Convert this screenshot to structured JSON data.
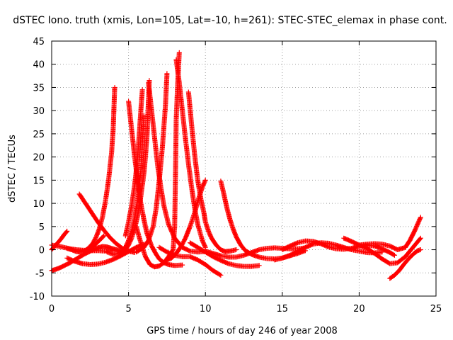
{
  "chart_data": {
    "type": "scatter",
    "title": "dSTEC Iono. truth (xmis, Lon=105, Lat=-10, h=261): STEC-STEC_elemax in phase cont.",
    "xlabel": "GPS time / hours of day 246 of year 2008",
    "ylabel": "dSTEC  / TECUs",
    "xlim": [
      0,
      25
    ],
    "ylim": [
      -10,
      45
    ],
    "x_ticks": [
      0,
      5,
      10,
      15,
      20,
      25
    ],
    "y_ticks": [
      -10,
      -5,
      0,
      5,
      10,
      15,
      20,
      25,
      30,
      35,
      40,
      45
    ],
    "grid": true,
    "marker": "+",
    "color": "#ff0000",
    "series": [
      {
        "x": [
          0.0,
          0.3,
          0.6,
          0.9,
          1.2,
          1.5,
          1.8,
          2.1,
          2.4,
          2.7,
          3.0,
          3.3,
          3.6,
          3.9,
          4.2,
          4.5
        ],
        "y": [
          -4.5,
          -4.2,
          -3.8,
          -3.3,
          -2.8,
          -2.2,
          -1.6,
          -1.0,
          -0.5,
          0.0,
          0.4,
          0.7,
          0.6,
          0.3,
          0.0,
          -0.3
        ]
      },
      {
        "x": [
          0.0,
          0.2,
          0.4,
          0.6,
          0.8,
          1.0
        ],
        "y": [
          0.0,
          0.8,
          1.5,
          2.3,
          3.2,
          4.0
        ]
      },
      {
        "x": [
          0.0,
          0.4,
          0.8,
          1.2,
          1.6,
          2.0,
          2.5,
          3.0,
          3.5,
          4.0
        ],
        "y": [
          1.0,
          0.8,
          0.5,
          0.2,
          0.0,
          -0.1,
          -0.2,
          -0.2,
          -0.3,
          -0.2
        ]
      },
      {
        "x": [
          1.0,
          1.3,
          1.6,
          1.9,
          2.1,
          2.3,
          2.5,
          2.7,
          2.9,
          3.1,
          3.3,
          3.5,
          3.7,
          3.9,
          4.0,
          4.05,
          4.1
        ],
        "y": [
          0.3,
          0.0,
          -0.4,
          -0.5,
          -0.3,
          0.1,
          0.7,
          1.5,
          2.8,
          4.5,
          7.0,
          10.5,
          15.0,
          21.0,
          26.0,
          30.5,
          35.0
        ]
      },
      {
        "x": [
          1.8,
          2.2,
          2.6,
          3.0,
          3.4,
          3.8,
          4.2,
          4.6,
          5.0,
          5.4
        ],
        "y": [
          12.0,
          10.0,
          8.0,
          6.0,
          4.2,
          2.6,
          1.3,
          0.3,
          -0.3,
          -0.6
        ]
      },
      {
        "x": [
          1.0,
          1.5,
          2.0,
          2.5,
          3.0,
          3.5,
          4.0,
          4.5,
          5.0,
          5.5,
          6.0
        ],
        "y": [
          -1.8,
          -2.5,
          -3.0,
          -3.2,
          -3.1,
          -2.7,
          -2.1,
          -1.3,
          -0.4,
          0.5,
          1.2
        ]
      },
      {
        "x": [
          2.5,
          2.8,
          3.1,
          3.4
        ],
        "y": [
          0.0,
          1.0,
          2.0,
          3.0
        ]
      },
      {
        "x": [
          3.6,
          4.0,
          4.4,
          4.8,
          5.0,
          5.2,
          5.4,
          5.6,
          5.8,
          6.0,
          6.1,
          6.2,
          6.25,
          6.3,
          6.35
        ],
        "y": [
          -0.5,
          -1.0,
          -0.8,
          0.0,
          1.0,
          2.5,
          4.5,
          7.5,
          11.5,
          16.5,
          20.0,
          24.5,
          28.5,
          32.5,
          36.5
        ]
      },
      {
        "x": [
          5.0,
          5.2,
          5.4,
          5.6,
          5.8,
          6.0,
          6.2,
          6.5,
          6.8,
          7.0,
          7.3,
          7.6,
          8.0,
          8.5
        ],
        "y": [
          32.0,
          26.0,
          20.0,
          14.5,
          10.0,
          6.5,
          3.5,
          0.8,
          -1.0,
          -2.0,
          -2.8,
          -3.2,
          -3.4,
          -3.3
        ]
      },
      {
        "x": [
          4.5,
          4.8,
          5.0,
          5.2,
          5.4,
          5.6,
          5.8,
          5.9,
          6.0
        ],
        "y": [
          -0.8,
          0.5,
          2.0,
          4.0,
          7.0,
          11.0,
          17.0,
          23.0,
          29.0
        ]
      },
      {
        "x": [
          4.8,
          5.0,
          5.2,
          5.4,
          5.5,
          5.6,
          5.7,
          5.8,
          5.9
        ],
        "y": [
          3.0,
          6.0,
          9.5,
          14.0,
          17.0,
          20.5,
          25.0,
          30.0,
          34.5
        ]
      },
      {
        "x": [
          6.3,
          6.5,
          6.7,
          6.9,
          7.1,
          7.3,
          7.6,
          8.0,
          8.5,
          9.0,
          9.5,
          10.0
        ],
        "y": [
          36.0,
          30.0,
          24.0,
          18.0,
          13.5,
          9.5,
          5.5,
          2.5,
          0.5,
          -0.3,
          -0.5,
          -0.4
        ]
      },
      {
        "x": [
          5.5,
          6.0,
          6.3,
          6.6,
          6.8,
          7.0,
          7.2,
          7.4,
          7.5
        ],
        "y": [
          -0.5,
          0.5,
          2.0,
          5.0,
          9.0,
          15.0,
          22.0,
          31.0,
          38.0
        ]
      },
      {
        "x": [
          5.5,
          5.8,
          6.1,
          6.4,
          6.7,
          7.0,
          7.3,
          7.6,
          7.9,
          8.0,
          8.05,
          8.1,
          8.2,
          8.3
        ],
        "y": [
          5.0,
          1.5,
          -1.5,
          -3.2,
          -3.7,
          -3.5,
          -2.8,
          -1.5,
          0.0,
          5.0,
          15.0,
          28.0,
          36.0,
          42.5
        ]
      },
      {
        "x": [
          8.1,
          8.3,
          8.5,
          8.7,
          8.9,
          9.1,
          9.3,
          9.5,
          9.8,
          10.0
        ],
        "y": [
          41.0,
          36.0,
          30.0,
          24.0,
          18.5,
          13.5,
          9.0,
          5.5,
          2.0,
          0.5
        ]
      },
      {
        "x": [
          8.9,
          9.1,
          9.3,
          9.5,
          9.7,
          9.9,
          10.0,
          10.2,
          10.4,
          10.7,
          11.0,
          11.3,
          11.6,
          12.0
        ],
        "y": [
          34.0,
          27.0,
          20.5,
          15.0,
          11.0,
          8.0,
          6.0,
          4.0,
          2.5,
          1.0,
          0.0,
          -0.4,
          -0.3,
          0.0
        ]
      },
      {
        "x": [
          7.5,
          7.8,
          8.1,
          8.4,
          8.7,
          9.0,
          9.3,
          9.6,
          9.8,
          10.0
        ],
        "y": [
          -2.2,
          -1.8,
          -0.8,
          0.6,
          2.5,
          5.0,
          8.0,
          11.5,
          13.5,
          15.0
        ]
      },
      {
        "x": [
          7.0,
          7.5,
          8.0,
          8.5,
          9.0,
          9.5,
          10.0,
          10.5,
          11.0
        ],
        "y": [
          0.5,
          -0.5,
          -1.2,
          -1.5,
          -1.5,
          -2.2,
          -3.2,
          -4.5,
          -5.5
        ]
      },
      {
        "x": [
          11.0,
          11.2,
          11.4,
          11.6,
          11.8,
          12.0,
          12.3,
          12.6,
          13.0,
          13.5,
          14.0,
          14.5,
          15.0,
          15.5,
          16.0,
          16.5
        ],
        "y": [
          14.8,
          12.0,
          9.0,
          6.5,
          4.5,
          2.8,
          1.0,
          -0.2,
          -1.0,
          -1.6,
          -1.9,
          -2.0,
          -1.8,
          -1.3,
          -0.8,
          -0.2
        ]
      },
      {
        "x": [
          9.0,
          9.5,
          10.0,
          10.5,
          11.0,
          11.5,
          12.0,
          12.5,
          13.0,
          13.5
        ],
        "y": [
          1.5,
          0.5,
          -0.5,
          -1.5,
          -2.3,
          -3.0,
          -3.4,
          -3.6,
          -3.6,
          -3.4
        ]
      },
      {
        "x": [
          10.0,
          10.5,
          11.0,
          11.5,
          12.0,
          12.5,
          13.0,
          13.5,
          14.0,
          14.5,
          15.0,
          15.5,
          16.0,
          16.5
        ],
        "y": [
          -0.3,
          -0.8,
          -1.3,
          -1.6,
          -1.6,
          -1.2,
          -0.6,
          0.0,
          0.3,
          0.4,
          0.3,
          0.2,
          0.2,
          0.4
        ]
      },
      {
        "x": [
          14.5,
          15.0,
          15.5,
          16.0,
          16.5,
          17.0,
          17.5,
          18.0,
          18.5,
          19.0,
          19.5,
          20.0,
          20.5,
          21.0,
          21.5
        ],
        "y": [
          -2.2,
          -1.8,
          -1.2,
          -0.4,
          0.5,
          1.2,
          1.5,
          1.4,
          1.0,
          0.5,
          0.0,
          -0.3,
          -0.6,
          -0.7,
          -0.5
        ]
      },
      {
        "x": [
          15.0,
          15.5,
          16.0,
          16.5,
          17.0,
          17.5,
          18.0,
          18.5,
          19.0,
          19.5,
          20.0,
          20.5,
          21.0,
          21.5,
          22.0,
          22.3
        ],
        "y": [
          0.0,
          0.8,
          1.5,
          1.9,
          1.8,
          1.3,
          0.6,
          0.2,
          0.1,
          0.3,
          0.8,
          1.0,
          0.8,
          0.2,
          -0.6,
          -1.2
        ]
      },
      {
        "x": [
          19.0,
          19.5,
          20.0,
          20.5,
          21.0,
          21.5,
          22.0,
          22.5,
          23.0,
          23.5,
          24.0
        ],
        "y": [
          2.5,
          1.8,
          1.0,
          0.3,
          -0.8,
          -2.0,
          -3.0,
          -2.8,
          -1.5,
          0.5,
          2.5
        ]
      },
      {
        "x": [
          20.0,
          20.5,
          21.0,
          21.5,
          22.0,
          22.5,
          23.0,
          23.3,
          23.6,
          24.0
        ],
        "y": [
          1.0,
          1.2,
          1.3,
          1.2,
          0.8,
          0.0,
          0.5,
          2.0,
          4.0,
          7.0
        ]
      },
      {
        "x": [
          22.0,
          22.3,
          22.6,
          22.9,
          23.2,
          23.5,
          23.8,
          24.0
        ],
        "y": [
          -6.2,
          -5.5,
          -4.5,
          -3.2,
          -2.0,
          -1.0,
          -0.2,
          0.0
        ]
      }
    ]
  }
}
